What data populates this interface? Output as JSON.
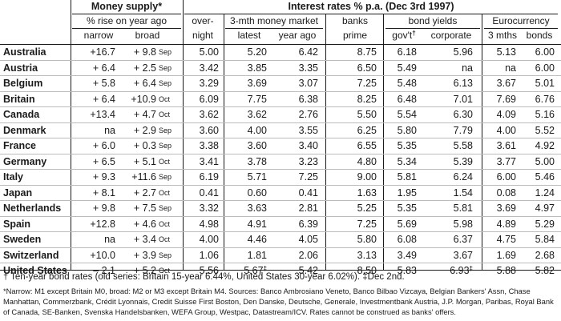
{
  "headers": {
    "money_supply": "Money supply*",
    "interest_rates": "Interest rates % p.a. (Dec 3rd 1997)",
    "pct_rise": "% rise on year ago",
    "narrow": "narrow",
    "broad": "broad",
    "overnight_1": "over-",
    "overnight_2": "night",
    "three_mth": "3-mth money market",
    "latest": "latest",
    "year_ago": "year ago",
    "banks_1": "banks",
    "banks_2": "prime",
    "bond_yields": "bond yields",
    "govt": "gov't",
    "govt_mark": "†",
    "corporate": "corporate",
    "eurocurrency": "Eurocurrency",
    "three_mths": "3 mths",
    "bonds": "bonds"
  },
  "rows": [
    {
      "country": "Australia",
      "narrow": "+16.7",
      "broad": "+ 9.8",
      "month": "Sep",
      "overnight": "5.00",
      "latest": "5.20",
      "latest_mark": "",
      "year_ago": "6.42",
      "prime": "8.75",
      "govt": "6.18",
      "corporate": "5.96",
      "corporate_mark": "",
      "euro3m": "5.13",
      "eurobonds": "6.00"
    },
    {
      "country": "Austria",
      "narrow": "+ 6.4",
      "broad": "+ 2.5",
      "month": "Sep",
      "overnight": "3.42",
      "latest": "3.85",
      "latest_mark": "",
      "year_ago": "3.35",
      "prime": "6.50",
      "govt": "5.49",
      "corporate": "na",
      "corporate_mark": "",
      "euro3m": "na",
      "eurobonds": "6.00"
    },
    {
      "country": "Belgium",
      "narrow": "+ 5.8",
      "broad": "+ 6.4",
      "month": "Sep",
      "overnight": "3.29",
      "latest": "3.69",
      "latest_mark": "",
      "year_ago": "3.07",
      "prime": "7.25",
      "govt": "5.48",
      "corporate": "6.13",
      "corporate_mark": "",
      "euro3m": "3.67",
      "eurobonds": "5.01"
    },
    {
      "country": "Britain",
      "narrow": "+ 6.4",
      "broad": "+10.9",
      "month": "Oct",
      "overnight": "6.09",
      "latest": "7.75",
      "latest_mark": "",
      "year_ago": "6.38",
      "prime": "8.25",
      "govt": "6.48",
      "corporate": "7.01",
      "corporate_mark": "",
      "euro3m": "7.69",
      "eurobonds": "6.76"
    },
    {
      "country": "Canada",
      "narrow": "+13.4",
      "broad": "+ 4.7",
      "month": "Oct",
      "overnight": "3.62",
      "latest": "3.62",
      "latest_mark": "",
      "year_ago": "2.76",
      "prime": "5.50",
      "govt": "5.54",
      "corporate": "6.30",
      "corporate_mark": "",
      "euro3m": "4.09",
      "eurobonds": "5.16"
    },
    {
      "country": "Denmark",
      "narrow": "na",
      "broad": "+ 2.9",
      "month": "Sep",
      "overnight": "3.60",
      "latest": "4.00",
      "latest_mark": "",
      "year_ago": "3.55",
      "prime": "6.25",
      "govt": "5.80",
      "corporate": "7.79",
      "corporate_mark": "",
      "euro3m": "4.00",
      "eurobonds": "5.52"
    },
    {
      "country": "France",
      "narrow": "+ 6.0",
      "broad": "+ 0.3",
      "month": "Sep",
      "overnight": "3.38",
      "latest": "3.60",
      "latest_mark": "",
      "year_ago": "3.40",
      "prime": "6.55",
      "govt": "5.35",
      "corporate": "5.58",
      "corporate_mark": "",
      "euro3m": "3.61",
      "eurobonds": "4.92"
    },
    {
      "country": "Germany",
      "narrow": "+ 6.5",
      "broad": "+ 5.1",
      "month": "Oct",
      "overnight": "3.41",
      "latest": "3.78",
      "latest_mark": "",
      "year_ago": "3.23",
      "prime": "4.80",
      "govt": "5.34",
      "corporate": "5.39",
      "corporate_mark": "",
      "euro3m": "3.77",
      "eurobonds": "5.00"
    },
    {
      "country": "Italy",
      "narrow": "+ 9.3",
      "broad": "+11.6",
      "month": "Sep",
      "overnight": "6.19",
      "latest": "5.71",
      "latest_mark": "",
      "year_ago": "7.25",
      "prime": "9.00",
      "govt": "5.81",
      "corporate": "6.24",
      "corporate_mark": "",
      "euro3m": "6.00",
      "eurobonds": "5.46"
    },
    {
      "country": "Japan",
      "narrow": "+ 8.1",
      "broad": "+ 2.7",
      "month": "Oct",
      "overnight": "0.41",
      "latest": "0.60",
      "latest_mark": "",
      "year_ago": "0.41",
      "prime": "1.63",
      "govt": "1.95",
      "corporate": "1.54",
      "corporate_mark": "",
      "euro3m": "0.08",
      "eurobonds": "1.24"
    },
    {
      "country": "Netherlands",
      "narrow": "+ 9.8",
      "broad": "+ 7.5",
      "month": "Sep",
      "overnight": "3.32",
      "latest": "3.63",
      "latest_mark": "",
      "year_ago": "2.81",
      "prime": "5.25",
      "govt": "5.35",
      "corporate": "5.81",
      "corporate_mark": "",
      "euro3m": "3.69",
      "eurobonds": "4.97"
    },
    {
      "country": "Spain",
      "narrow": "+12.8",
      "broad": "+ 4.6",
      "month": "Oct",
      "overnight": "4.98",
      "latest": "4.91",
      "latest_mark": "",
      "year_ago": "6.39",
      "prime": "7.25",
      "govt": "5.69",
      "corporate": "5.98",
      "corporate_mark": "",
      "euro3m": "4.89",
      "eurobonds": "5.29"
    },
    {
      "country": "Sweden",
      "narrow": "na",
      "broad": "+ 3.4",
      "month": "Oct",
      "overnight": "4.00",
      "latest": "4.46",
      "latest_mark": "",
      "year_ago": "4.05",
      "prime": "5.80",
      "govt": "6.08",
      "corporate": "6.37",
      "corporate_mark": "",
      "euro3m": "4.75",
      "eurobonds": "5.84"
    },
    {
      "country": "Switzerland",
      "narrow": "+10.0",
      "broad": "+ 3.9",
      "month": "Sep",
      "overnight": "1.06",
      "latest": "1.81",
      "latest_mark": "",
      "year_ago": "2.06",
      "prime": "3.13",
      "govt": "3.49",
      "corporate": "3.67",
      "corporate_mark": "",
      "euro3m": "1.69",
      "eurobonds": "2.68"
    },
    {
      "country": "United States",
      "narrow": "– 2.1",
      "broad": "+ 5.2",
      "month": "Oct",
      "overnight": "5.56",
      "latest": "5.67",
      "latest_mark": "‡",
      "year_ago": "5.42",
      "prime": "8.50",
      "govt": "5.83",
      "corporate": "6.93",
      "corporate_mark": "‡",
      "euro3m": "5.88",
      "eurobonds": "5.82"
    }
  ],
  "footnotes": {
    "dagger": "†",
    "line1": " Ten-year bond rates (old series: Britain 15-year 6.44%, United States 30-year 6.02%). ‡Dec 2nd.",
    "line2": "*Narrow: M1 except Britain M0, broad: M2 or M3 except Britain M4. Sources: Banco Ambrosiano Veneto, Banco Bilbao Vizcaya, Belgian Bankers' Assn, Chase Manhattan, Commerzbank, Crédit Lyonnais, Credit Suisse First Boston, Den Danske, Deutsche, Generale, Investmentbank Austria, J.P. Morgan, Paribas, Royal Bank of Canada, SE-Banken, Svenska Handelsbanken, WEFA Group, Westpac, Datastream/ICV. Rates cannot be construed as banks' offers."
  }
}
